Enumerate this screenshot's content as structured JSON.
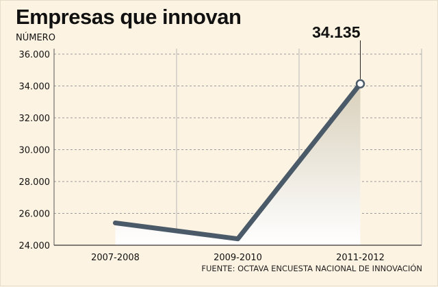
{
  "chart_data": {
    "type": "line",
    "title": "Empresas que innovan",
    "ylabel": "NÚMERO",
    "xlabel": "",
    "categories": [
      "2007-2008",
      "2009-2010",
      "2011-2012"
    ],
    "series": [
      {
        "values": [
          25400,
          24400,
          34135
        ]
      }
    ],
    "x_plot": [
      0.5,
      1.5,
      2.5
    ],
    "ylim": [
      24000,
      36000
    ],
    "yticks": [
      24000,
      26000,
      28000,
      30000,
      32000,
      34000,
      36000
    ],
    "ytick_labels": [
      "24.000",
      "26.000",
      "28.000",
      "30.000",
      "32.000",
      "34.000",
      "36.000"
    ],
    "annotation": {
      "text": "34.135",
      "value": 34135
    },
    "source": "FUENTE: OCTAVA ENCUESTA NACIONAL DE INNOVACIÓN",
    "grid": true,
    "line_color": "#4a5a68",
    "background_color": "#fdf3e2"
  }
}
